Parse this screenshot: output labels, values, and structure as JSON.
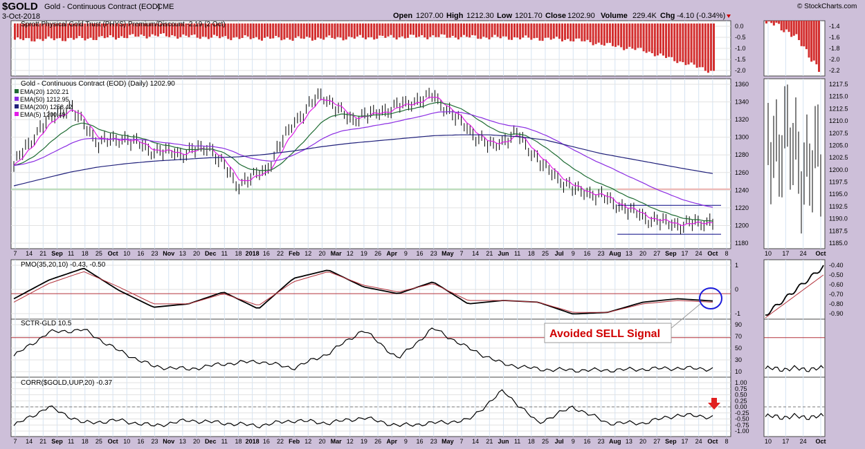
{
  "header": {
    "symbol": "$GOLD",
    "name": "Gold - Continuous Contract (EOD)",
    "exchange": "CME",
    "date": "3-Oct-2018",
    "copyright": "© StockCharts.com",
    "quote": {
      "open_label": "Open",
      "open": "1207.00",
      "high_label": "High",
      "high": "1212.30",
      "low_label": "Low",
      "low": "1201.70",
      "close_label": "Close",
      "close": "1202.90",
      "volume_label": "Volume",
      "volume": "229.4K",
      "chg_label": "Chg",
      "chg": "-4.10 (-0.34%)"
    }
  },
  "x_axis": {
    "main": [
      "7",
      "14",
      "21",
      "Sep",
      "11",
      "18",
      "25",
      "Oct",
      "10",
      "16",
      "23",
      "Nov",
      "13",
      "20",
      "Dec",
      "11",
      "18",
      "2018",
      "16",
      "22",
      "Feb",
      "12",
      "20",
      "Mar",
      "12",
      "19",
      "26",
      "Apr",
      "9",
      "16",
      "23",
      "May",
      "7",
      "14",
      "21",
      "Jun",
      "11",
      "18",
      "25",
      "Jul",
      "9",
      "16",
      "23",
      "Aug",
      "13",
      "20",
      "27",
      "Sep",
      "17",
      "24",
      "Oct",
      "8"
    ],
    "zoom": [
      "10",
      "17",
      "24",
      "Oct"
    ]
  },
  "colors": {
    "bar": "#d32f2f",
    "ema20": "#1e6b32",
    "ema50": "#8a2be2",
    "ema200": "#1f1f7a",
    "ema5": "#e21be8",
    "signal": "#d00000",
    "circle": "#1a1adb",
    "support": "#000080",
    "hline": "#b2303a"
  },
  "chart_data": [
    {
      "type": "bar",
      "panel": "premium",
      "title": "Sprott Physical Gold Trust (PHYS) Premium/Discount -2.19 (2 Oct)",
      "yticks": [
        "0.0",
        "-0.5",
        "-1.0",
        "-1.5",
        "-2.0"
      ],
      "zoom_yticks": [
        "-1.4",
        "-1.6",
        "-1.8",
        "-2.0",
        "-2.2"
      ],
      "x": [
        0,
        0.1,
        0.2,
        0.3,
        0.4,
        0.5,
        0.6,
        0.7,
        0.8,
        0.9,
        1.0
      ],
      "values": [
        -0.7,
        -0.65,
        -0.5,
        -0.6,
        -0.65,
        -0.6,
        -0.55,
        -0.6,
        -0.7,
        -1.2,
        -2.19
      ]
    },
    {
      "type": "line",
      "panel": "price",
      "title": "Gold - Continuous Contract (EOD) (Daily) 1202.90",
      "legend": [
        {
          "label": "EMA(20) 1202.21",
          "color": "#1e6b32"
        },
        {
          "label": "EMA(50) 1212.95",
          "color": "#8a2be2"
        },
        {
          "label": "EMA(200) 1258.42",
          "color": "#1f1f7a"
        },
        {
          "label": "EMA(5) 1200.49",
          "color": "#e21be8"
        }
      ],
      "yticks": [
        "1360",
        "1340",
        "1320",
        "1300",
        "1280",
        "1260",
        "1240",
        "1220",
        "1200",
        "1180"
      ],
      "zoom_yticks": [
        "1217.5",
        "1215.0",
        "1212.5",
        "1210.0",
        "1207.5",
        "1205.0",
        "1202.5",
        "1200.0",
        "1197.5",
        "1195.0",
        "1192.5",
        "1190.0",
        "1187.5",
        "1185.0"
      ],
      "ylim": [
        1170,
        1370
      ],
      "x": [
        0,
        0.04,
        0.08,
        0.12,
        0.16,
        0.2,
        0.24,
        0.28,
        0.32,
        0.36,
        0.4,
        0.44,
        0.48,
        0.52,
        0.56,
        0.6,
        0.64,
        0.68,
        0.72,
        0.76,
        0.8,
        0.84,
        0.88,
        0.92,
        0.96,
        1.0
      ],
      "close": [
        1268,
        1315,
        1338,
        1295,
        1300,
        1285,
        1282,
        1290,
        1245,
        1262,
        1318,
        1352,
        1322,
        1330,
        1340,
        1350,
        1318,
        1290,
        1305,
        1265,
        1240,
        1232,
        1215,
        1202,
        1198,
        1202.9
      ],
      "ema200": [
        1244,
        1252,
        1260,
        1266,
        1270,
        1273,
        1275,
        1277,
        1278,
        1281,
        1285,
        1290,
        1294,
        1297,
        1300,
        1303,
        1304,
        1304,
        1302,
        1298,
        1290,
        1282,
        1276,
        1270,
        1264,
        1258.42
      ],
      "hlines": [
        {
          "value": 1240
        },
        {
          "value": 1221
        },
        {
          "value": 1187
        }
      ]
    },
    {
      "type": "line",
      "panel": "pmo",
      "title": "PMO(35,20,10) -0.43, -0.50",
      "yticks": [
        "1",
        "0",
        "-1"
      ],
      "zoom_yticks": [
        "-0.40",
        "-0.50",
        "-0.60",
        "-0.70",
        "-0.80",
        "-0.90"
      ],
      "ylim": [
        -1.5,
        2.0
      ],
      "x": [
        0,
        0.05,
        0.1,
        0.15,
        0.2,
        0.25,
        0.3,
        0.35,
        0.4,
        0.45,
        0.5,
        0.55,
        0.6,
        0.65,
        0.7,
        0.75,
        0.8,
        0.85,
        0.9,
        0.95,
        1.0
      ],
      "series": [
        {
          "name": "PMO",
          "values": [
            -0.3,
            0.8,
            1.5,
            0.2,
            -0.8,
            -0.6,
            0.1,
            -0.9,
            0.9,
            1.4,
            0.4,
            0.0,
            0.7,
            -0.6,
            -0.4,
            -0.5,
            -1.2,
            -1.1,
            -0.5,
            -0.3,
            -0.43
          ]
        },
        {
          "name": "Signal",
          "values": [
            -0.5,
            0.6,
            1.3,
            0.4,
            -0.6,
            -0.6,
            0.0,
            -0.7,
            0.7,
            1.3,
            0.5,
            0.1,
            0.6,
            -0.4,
            -0.4,
            -0.5,
            -1.1,
            -1.1,
            -0.6,
            -0.4,
            -0.5
          ]
        }
      ],
      "annotation": "Avoided SELL Signal"
    },
    {
      "type": "line",
      "panel": "sctr",
      "title": "SCTR-GLD 10.5",
      "yticks": [
        "90",
        "70",
        "50",
        "30",
        "10"
      ],
      "ylim": [
        0,
        100
      ],
      "hline": 70,
      "x": [
        0,
        0.05,
        0.1,
        0.15,
        0.2,
        0.25,
        0.3,
        0.35,
        0.4,
        0.45,
        0.5,
        0.55,
        0.6,
        0.65,
        0.7,
        0.75,
        0.8,
        0.85,
        0.9,
        0.95,
        1.0
      ],
      "values": [
        35,
        80,
        85,
        45,
        15,
        10,
        20,
        25,
        12,
        40,
        85,
        30,
        88,
        50,
        20,
        10,
        8,
        8,
        10,
        12,
        10.5
      ]
    },
    {
      "type": "line",
      "panel": "corr",
      "title": "CORR($GOLD,UUP,20) -0.37",
      "yticks": [
        "1.00",
        "0.75",
        "0.50",
        "0.25",
        "0.00",
        "-0.25",
        "-0.50",
        "-0.75",
        "-1.00"
      ],
      "ylim": [
        -1.0,
        1.0
      ],
      "hline": 0,
      "x": [
        0,
        0.05,
        0.1,
        0.15,
        0.2,
        0.25,
        0.3,
        0.35,
        0.4,
        0.45,
        0.5,
        0.55,
        0.6,
        0.65,
        0.7,
        0.75,
        0.8,
        0.85,
        0.9,
        0.95,
        1.0
      ],
      "values": [
        -0.7,
        0.0,
        -0.6,
        -0.5,
        -0.7,
        -0.5,
        -0.6,
        -0.7,
        -0.5,
        -0.6,
        -0.4,
        -0.7,
        -0.6,
        -0.5,
        0.6,
        -0.6,
        0.0,
        -0.6,
        -0.6,
        -0.3,
        -0.37
      ]
    }
  ]
}
